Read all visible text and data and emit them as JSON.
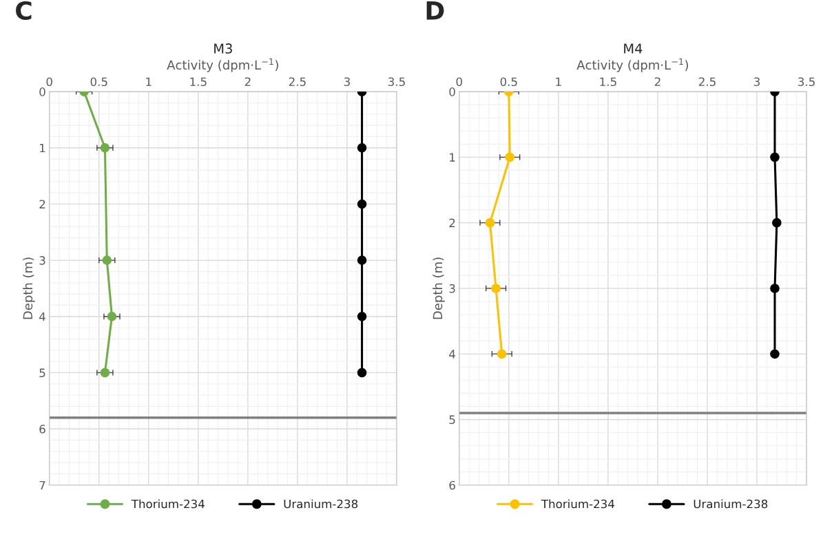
{
  "chart_data": [
    {
      "type": "line",
      "title": "M3",
      "xlabel": "Activity (dpm·L$^{−1}$)",
      "ylabel": "Depth (m)",
      "annotations": [
        "C"
      ],
      "xlim": [
        0,
        3.5
      ],
      "xticks": [
        0,
        0.5,
        1,
        1.5,
        2,
        2.5,
        3,
        3.5
      ],
      "ylim": [
        7,
        0
      ],
      "yticks": [
        0,
        1,
        2,
        3,
        4,
        5,
        6,
        7
      ],
      "grid": true,
      "legend": "bottom",
      "marker": "circle",
      "line_style": "solid",
      "series": [
        {
          "name": "Thorium-234",
          "color": "#70ad47",
          "x": [
            0.35,
            0.56,
            0.58,
            0.63,
            0.56
          ],
          "values": [
            0,
            1,
            3,
            4,
            5
          ],
          "xerrors": [
            0.08,
            0.08,
            0.08,
            0.08,
            0.08
          ]
        },
        {
          "name": "Uranium-238",
          "color": "#000000",
          "x": [
            3.15,
            3.15,
            3.15,
            3.15,
            3.15,
            3.15
          ],
          "values": [
            0,
            1,
            2,
            3,
            4,
            5
          ]
        }
      ],
      "ref_lines": [
        {
          "axis": "y",
          "value": 5.8,
          "color": "#808080"
        }
      ]
    },
    {
      "type": "line",
      "title": "M4",
      "xlabel": "Activity (dpm·L$^{−1}$)",
      "ylabel": "Depth (m)",
      "annotations": [
        "D"
      ],
      "xlim": [
        0,
        3.5
      ],
      "xticks": [
        0,
        0.5,
        1,
        1.5,
        2,
        2.5,
        3,
        3.5
      ],
      "ylim": [
        6,
        0
      ],
      "yticks": [
        0,
        1,
        2,
        3,
        4,
        5,
        6
      ],
      "grid": true,
      "legend": "bottom",
      "marker": "circle",
      "line_style": "solid",
      "series": [
        {
          "name": "Thorium-234",
          "color": "#ffc000",
          "x": [
            0.5,
            0.51,
            0.31,
            0.37,
            0.43
          ],
          "values": [
            0,
            1,
            2,
            3,
            4
          ],
          "xerrors": [
            0.1,
            0.1,
            0.1,
            0.1,
            0.1
          ]
        },
        {
          "name": "Uranium-238",
          "color": "#000000",
          "x": [
            3.18,
            3.18,
            3.2,
            3.18,
            3.18
          ],
          "values": [
            0,
            1,
            2,
            3,
            4
          ]
        }
      ],
      "ref_lines": [
        {
          "axis": "y",
          "value": 4.9,
          "color": "#808080"
        }
      ]
    }
  ]
}
